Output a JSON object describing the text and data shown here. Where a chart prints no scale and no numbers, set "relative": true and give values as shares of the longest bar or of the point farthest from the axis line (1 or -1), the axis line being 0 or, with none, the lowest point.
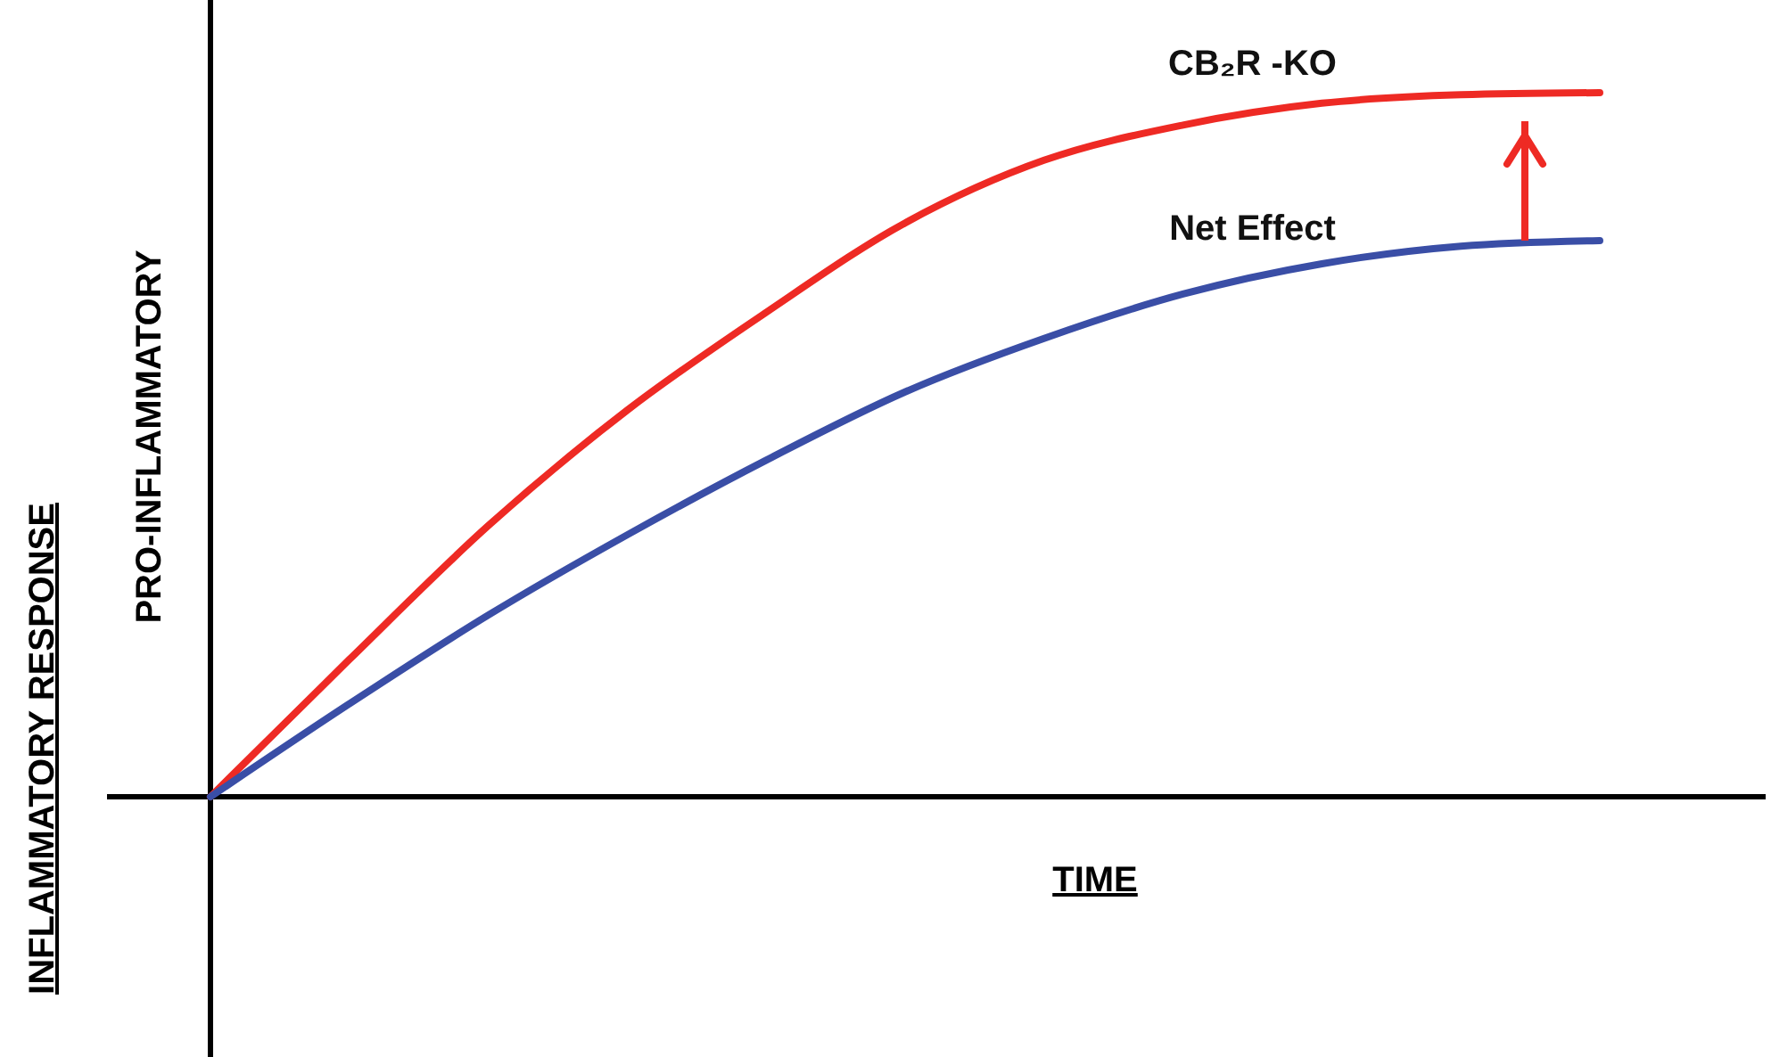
{
  "chart_data": {
    "type": "line",
    "relative": true,
    "ylabel": "INFLAMMATORY RESPONSE",
    "xlabel": "TIME",
    "annotations": [
      "PRO-INFLAMMATORY"
    ],
    "marker": "none",
    "line_style": "solid",
    "categories": [
      null,
      null,
      null,
      null,
      null,
      null,
      null,
      null,
      null,
      null,
      null
    ],
    "series": [
      {
        "name": "CB₂R -KO",
        "color": "#ee2a24",
        "values": [
          0,
          0.195,
          0.385,
          0.549,
          0.688,
          0.815,
          0.904,
          0.954,
          0.985,
          0.997,
          1
        ]
      },
      {
        "name": "Net Effect",
        "color": "#3a4ea6",
        "values": [
          0,
          0.132,
          0.258,
          0.372,
          0.478,
          0.575,
          0.651,
          0.714,
          0.757,
          0.782,
          0.79
        ]
      }
    ]
  }
}
